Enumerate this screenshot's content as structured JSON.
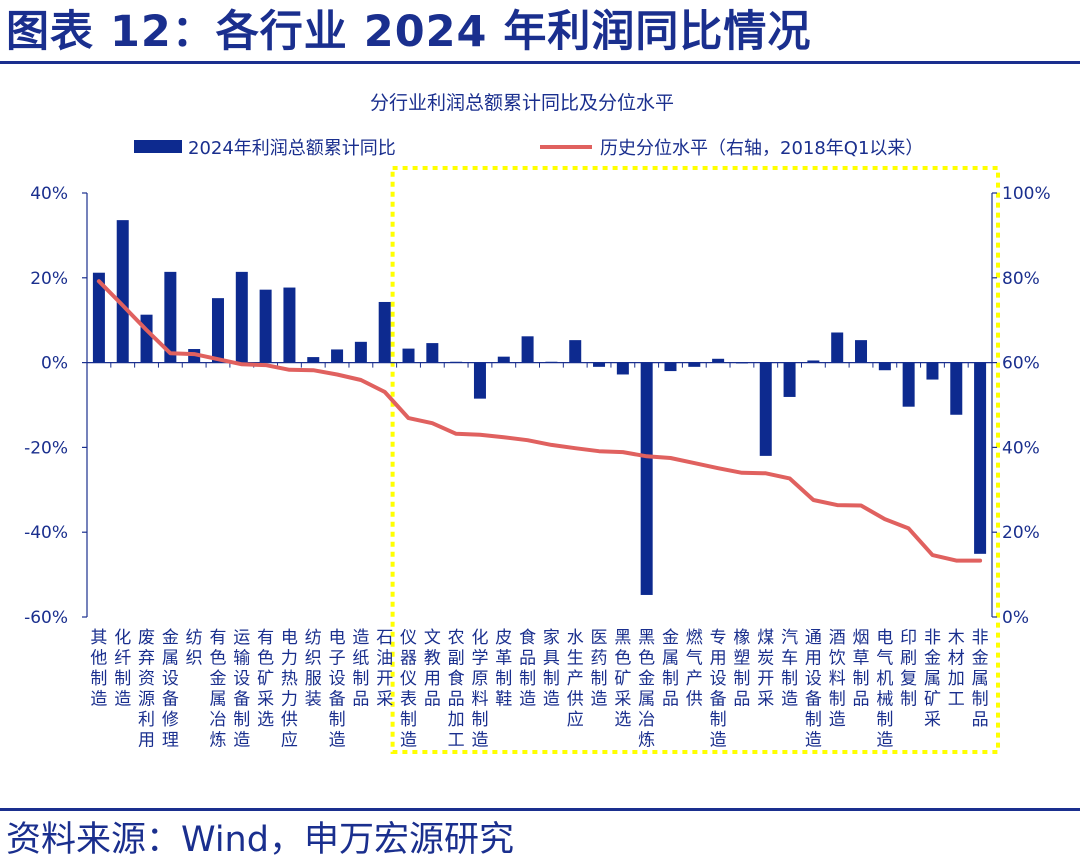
{
  "header": {
    "title": "图表 12：各行业 2024 年利润同比情况"
  },
  "footer": {
    "source": "资料来源：Wind，申万宏源研究"
  },
  "chart_data": {
    "type": "bar",
    "title": "分行业利润总额累计同比及分位水平",
    "categories": [
      "其他制造",
      "化纤制造",
      "废弃资源利用",
      "金属设备修理",
      "纺织",
      "有色金属冶炼",
      "运输设备制造",
      "有色矿采选",
      "电力热力供应",
      "纺织服装",
      "电子设备制造",
      "造纸制品",
      "石油开采",
      "仪器仪表制造",
      "文教用品",
      "农副食品加工",
      "化学原料制造",
      "皮革制鞋",
      "食品制造",
      "家具制造",
      "水生产供应",
      "医药制造",
      "黑色矿采选",
      "黑色金属冶炼",
      "金属制品",
      "燃气产供",
      "专用设备制造",
      "橡塑制品",
      "煤炭开采",
      "汽车制造",
      "通用设备制造",
      "酒饮料制造",
      "烟草制品",
      "电气机械制造",
      "印刷复制",
      "非金属矿采",
      "木材加工",
      "非金属制品"
    ],
    "series": [
      {
        "name": "2024年利润总额累计同比",
        "axis": "left",
        "color": "#0d2a8f",
        "values": [
          21.2,
          33.6,
          11.3,
          21.4,
          3.2,
          15.2,
          21.4,
          17.2,
          17.7,
          1.3,
          3.1,
          4.9,
          14.3,
          3.3,
          4.6,
          0.2,
          -8.5,
          1.4,
          6.2,
          0.2,
          5.3,
          -1.0,
          -2.8,
          -54.8,
          -2.0,
          -1.0,
          0.9,
          -0.2,
          -22.0,
          -8.1,
          0.5,
          7.1,
          5.3,
          -1.8,
          -10.4,
          -4.0,
          -12.3,
          -45.1
        ]
      },
      {
        "name": "历史分位水平（右轴，2018年Q1以来）",
        "axis": "right",
        "color": "#e0615f",
        "values": [
          79.2,
          73.5,
          67.7,
          62.2,
          62.0,
          60.8,
          59.6,
          59.4,
          58.3,
          58.2,
          57.2,
          55.9,
          53.1,
          46.9,
          45.7,
          43.2,
          43.0,
          42.4,
          41.7,
          40.6,
          39.8,
          39.1,
          38.9,
          37.9,
          37.5,
          36.3,
          35.1,
          34.0,
          33.9,
          32.7,
          27.6,
          26.4,
          26.3,
          23.1,
          20.9,
          14.6,
          13.3,
          13.3
        ]
      }
    ],
    "y_left": {
      "min": -60,
      "max": 40,
      "ticks": [
        "40%",
        "20%",
        "0%",
        "-20%",
        "-40%",
        "-60%"
      ]
    },
    "y_right": {
      "min": 0,
      "max": 100,
      "ticks": [
        "100%",
        "80%",
        "60%",
        "40%",
        "20%",
        "0%"
      ]
    },
    "highlight_box": {
      "from_category": "仪器仪表制造",
      "to_category": "非金属制品",
      "color": "#ffff00"
    }
  }
}
